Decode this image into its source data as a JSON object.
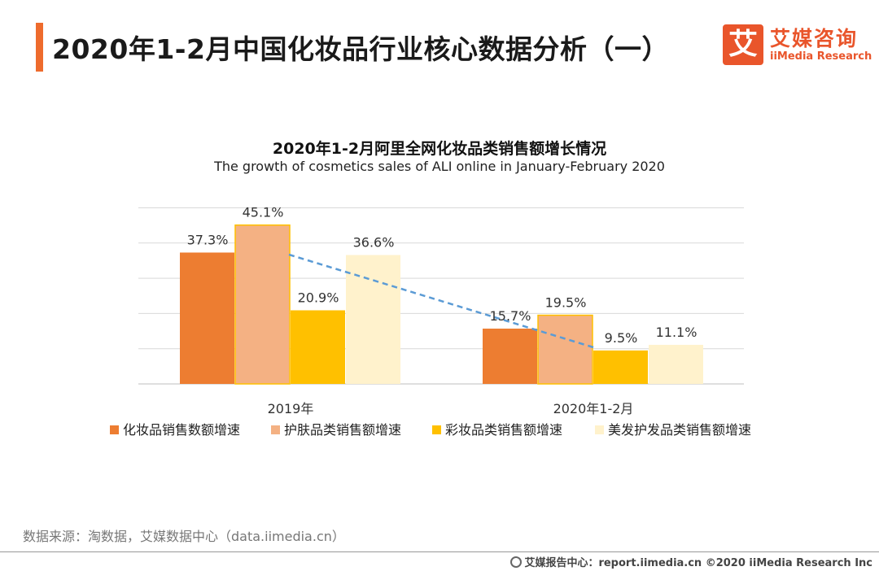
{
  "header": {
    "title": "2020年1-2月中国化妆品行业核心数据分析（一）",
    "logo_mark": "艾",
    "logo_cn": "艾媒咨询",
    "logo_en": "iiMedia Research"
  },
  "colors": {
    "accent": "#ee6b2d",
    "series": [
      "#ed7d31",
      "#f4b183",
      "#ffc000",
      "#fff2cc"
    ],
    "trend_line": "#5b9bd5"
  },
  "chart_data": {
    "type": "bar",
    "title": "2020年1-2月阿里全网化妆品类销售额增长情况",
    "subtitle": "The growth of cosmetics sales of ALI online in January-February 2020",
    "categories": [
      "2019年",
      "2020年1-2月"
    ],
    "series": [
      {
        "name": "化妆品销售数额增速",
        "values": [
          37.3,
          15.7
        ],
        "labels": [
          "37.3%",
          "15.7%"
        ]
      },
      {
        "name": "护肤品类销售额增速",
        "values": [
          45.1,
          19.5
        ],
        "labels": [
          "45.1%",
          "19.5%"
        ]
      },
      {
        "name": "彩妆品类销售额增速",
        "values": [
          20.9,
          9.5
        ],
        "labels": [
          "20.9%",
          "9.5%"
        ]
      },
      {
        "name": "美发护发品类销售额增速",
        "values": [
          36.6,
          11.1
        ],
        "labels": [
          "36.6%",
          "11.1%"
        ]
      }
    ],
    "ylim": [
      0,
      50
    ],
    "grid": true,
    "legend": "bottom",
    "annotations": [
      "dashed trend line from 护肤品类 2019 to 彩妆品类 2020年1-2月"
    ]
  },
  "footer": {
    "source": "数据来源：淘数据，艾媒数据中心（data.iimedia.cn）",
    "copyright": "艾媒报告中心：report.iimedia.cn ©2020 iiMedia Research Inc"
  }
}
